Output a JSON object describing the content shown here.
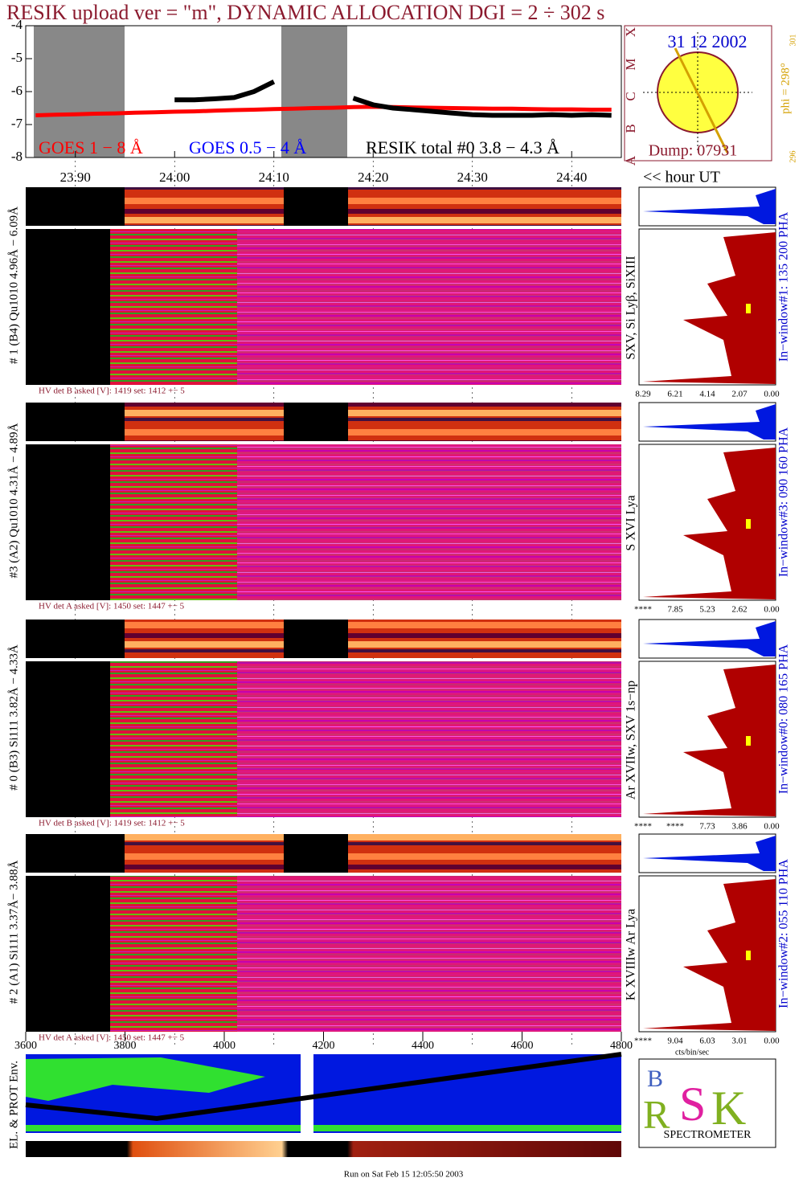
{
  "title": "RESIK upload ver = \"m\", DYNAMIC ALLOCATION  DGI =   2 ÷ 302 s",
  "chart_data": {
    "type": "line",
    "x": [
      23.86,
      23.88,
      23.9,
      23.92,
      23.94,
      23.96,
      23.98,
      24.0,
      24.02,
      24.04,
      24.06,
      24.08,
      24.1,
      24.12,
      24.14,
      24.16,
      24.18,
      24.2,
      24.22,
      24.24,
      24.26,
      24.28,
      24.3,
      24.32,
      24.34,
      24.36,
      24.38,
      24.4,
      24.42,
      24.44
    ],
    "series": [
      {
        "name": "GOES 1 − 8 Å",
        "color": "#ff0000",
        "values": [
          -6.72,
          -6.7,
          -6.69,
          -6.67,
          -6.66,
          -6.64,
          -6.63,
          -6.61,
          -6.6,
          -6.58,
          -6.56,
          -6.55,
          -6.53,
          -6.52,
          -6.5,
          -6.49,
          -6.47,
          -6.46,
          -6.47,
          -6.48,
          -6.49,
          -6.5,
          -6.51,
          -6.52,
          -6.52,
          -6.53,
          -6.54,
          -6.54,
          -6.55,
          -6.55
        ]
      },
      {
        "name": "GOES 0.5 − 4 Å",
        "color": "#0000ff",
        "values": [
          null,
          null,
          null,
          null,
          null,
          null,
          null,
          null,
          null,
          null,
          null,
          null,
          null,
          null,
          null,
          null,
          null,
          null,
          null,
          null,
          null,
          null,
          null,
          null,
          null,
          null,
          null,
          null,
          null,
          null
        ]
      },
      {
        "name": "RESIK total #0  3.8 − 4.3 Å",
        "color": "#000000",
        "values": [
          null,
          null,
          null,
          null,
          null,
          null,
          null,
          -6.25,
          -6.25,
          -6.22,
          -6.18,
          -6.0,
          -5.7,
          null,
          null,
          null,
          -6.2,
          -6.4,
          -6.5,
          -6.55,
          -6.6,
          -6.65,
          -6.7,
          -6.72,
          -6.72,
          -6.72,
          -6.7,
          -6.72,
          -6.7,
          -6.72
        ]
      }
    ],
    "xlim": [
      23.85,
      24.45
    ],
    "xticks": [
      {
        "value": 23.9,
        "label": "23.90"
      },
      {
        "value": 24.0,
        "label": "24.00"
      },
      {
        "value": 24.1,
        "label": "24.10"
      },
      {
        "value": 24.2,
        "label": "24.20"
      },
      {
        "value": 24.3,
        "label": "24.30"
      },
      {
        "value": 24.4,
        "label": "24.40"
      }
    ],
    "xlabel": "<< hour UT",
    "ylim": [
      -8,
      -4
    ],
    "yticks": [
      -4,
      -5,
      -6,
      -7,
      -8
    ]
  },
  "sun": {
    "date": "31 12 2002",
    "dump": "Dump: 07931",
    "phi": "phi = 298°",
    "phi_top": "301",
    "phi_bottom": "296",
    "classes": [
      "X",
      "M",
      "C",
      "B",
      "A"
    ]
  },
  "panels": [
    {
      "label": "# 1 (B4) Qu1010 4.96Å − 6.09Å",
      "lines": "SXV, Si Lyβ, SiXIII",
      "window": "In−window#1:  135 200 PHA",
      "hv": "HV det B asked [V]:  1419 set:  1412 +−   5",
      "hist_ticks": [
        "8.29",
        "6.21",
        "4.14",
        "2.07",
        "0.00"
      ]
    },
    {
      "label": "#3 (A2) Qu1010  4.31Å − 4.89Å",
      "lines": "S XVI Lya",
      "window": "In−window#3:  090 160 PHA",
      "hv": "HV det A asked [V]:  1450 set:  1447 +−   5",
      "hist_ticks": [
        "****",
        "7.85",
        "5.23",
        "2.62",
        "0.00"
      ]
    },
    {
      "label": "# 0 (B3) Si111  3.82Å − 4.33Å",
      "lines": "Ar XVIIw,  SXV 1s−np",
      "window": "In−window#0:  080 165 PHA",
      "hv": "HV det B asked [V]:  1419 set:  1412 +−   5",
      "hist_ticks": [
        "****",
        "****",
        "7.73",
        "3.86",
        "0.00"
      ]
    },
    {
      "label": "# 2 (A1) Si111  3.37Å− 3.88Å",
      "lines": "K XVIIIw  Ar Lya",
      "window": "In−window#2:  055 110 PHA",
      "hv": "HV det A asked [V]:  1450 set:  1447 +−   5",
      "hist_ticks": [
        "****",
        "9.04",
        "6.03",
        "3.01",
        "0.00"
      ]
    }
  ],
  "seconds_axis": {
    "range": [
      3600,
      4800
    ],
    "ticks": [
      3600,
      3800,
      4000,
      4200,
      4400,
      4600,
      4800
    ]
  },
  "hist_unit": "cts/bin/sec",
  "env_label": "EL. & PROT Env.",
  "logo": "SPECTROMETER",
  "footer": "Run on Sat Feb 15 12:05:50 2003"
}
